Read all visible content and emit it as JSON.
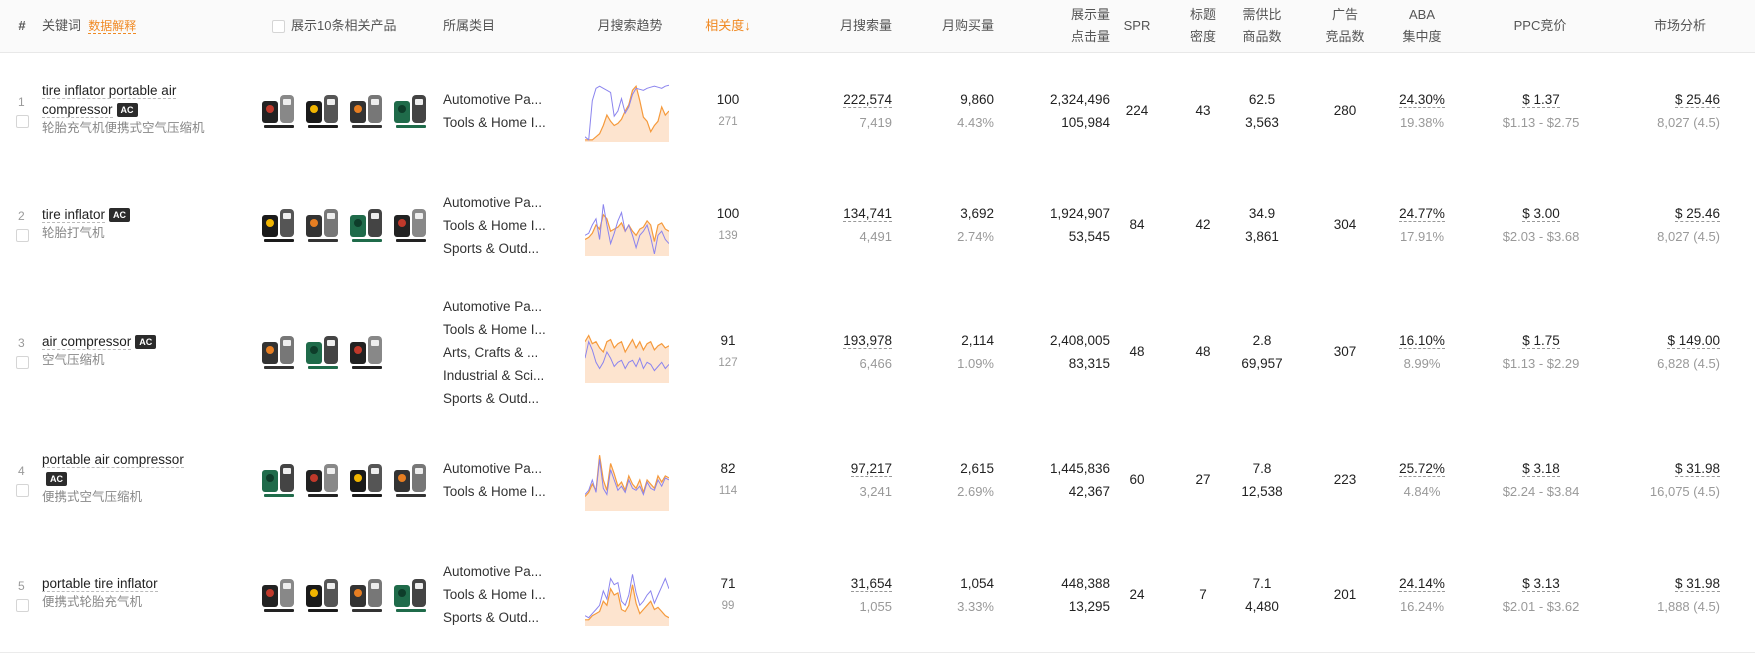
{
  "header": {
    "hash": "#",
    "keyword": "关键词",
    "data_explain": "数据解释",
    "show_products": "展示10条相关产品",
    "category": "所属类目",
    "trend": "月搜索趋势",
    "relevance": "相关度↓",
    "monthly_search": "月搜索量",
    "monthly_buy": "月购买量",
    "impressions": "展示量",
    "clicks": "点击量",
    "spr": "SPR",
    "title_density_1": "标题",
    "title_density_2": "密度",
    "supply_1": "需供比",
    "supply_2": "商品数",
    "ad_1": "广告",
    "ad_2": "竞品数",
    "aba_1": "ABA",
    "aba_2": "集中度",
    "ppc": "PPC竞价",
    "market": "市场分析"
  },
  "colors": {
    "accent": "#f08a24",
    "line_purple": "#8b84ee",
    "line_orange": "#f59a3c",
    "area_fill": "#fde4cf"
  },
  "rows": [
    {
      "index": "1",
      "keyword_line1": "tire inflator portable air",
      "keyword_line2": "compressor",
      "badge": "AC",
      "keyword_cn": "轮胎充气机便携式空气压缩机",
      "categories": [
        "Automotive Pa...",
        "Tools & Home I..."
      ],
      "relevance": "100",
      "relevance_sub": "271",
      "monthly_search": "222,574",
      "monthly_search_sub": "7,419",
      "monthly_buy": "9,860",
      "monthly_buy_sub": "4.43%",
      "impressions": "2,324,496",
      "clicks": "105,984",
      "spr": "224",
      "title_density": "43",
      "supply_ratio": "62.5",
      "product_count": "3,563",
      "ad_count": "280",
      "aba": "24.30%",
      "aba_sub": "19.38%",
      "ppc": "$ 1.37",
      "ppc_range": "$1.13 - $2.75",
      "market": "$ 25.46",
      "market_sub": "8,027 (4.5)",
      "thumb_icons": [
        "tire-inflator-kit-icon",
        "portable-inflator-icon",
        "tire-inflator-icon",
        "green-air-compressor-icon"
      ],
      "trend_purple": [
        55,
        58,
        20,
        8,
        6,
        8,
        10,
        12,
        35,
        30,
        18,
        32,
        26,
        14,
        8,
        9,
        10,
        8,
        7,
        6,
        7,
        8,
        6,
        5
      ],
      "trend_orange": [
        58,
        58,
        58,
        55,
        52,
        44,
        34,
        40,
        44,
        42,
        38,
        30,
        24,
        10,
        6,
        20,
        36,
        40,
        50,
        44,
        40,
        26,
        34,
        30
      ]
    },
    {
      "index": "2",
      "keyword_line1": "tire inflator",
      "keyword_line2": "",
      "badge": "AC",
      "keyword_cn": "轮胎打气机",
      "categories": [
        "Automotive Pa...",
        "Tools & Home I...",
        "Sports & Outd..."
      ],
      "relevance": "100",
      "relevance_sub": "139",
      "monthly_search": "134,741",
      "monthly_search_sub": "4,491",
      "monthly_buy": "3,692",
      "monthly_buy_sub": "2.74%",
      "impressions": "1,924,907",
      "clicks": "53,545",
      "spr": "84",
      "title_density": "42",
      "supply_ratio": "34.9",
      "product_count": "3,861",
      "ad_count": "304",
      "aba": "24.77%",
      "aba_sub": "17.91%",
      "ppc": "$ 3.00",
      "ppc_range": "$2.03 - $3.68",
      "market": "$ 25.46",
      "market_sub": "8,027 (4.5)",
      "thumb_icons": [
        "inflator-black-icon",
        "inflator-set-icon",
        "inflator-gauge-icon",
        "digital-inflator-icon"
      ],
      "trend_purple": [
        40,
        38,
        30,
        24,
        44,
        10,
        30,
        48,
        38,
        26,
        18,
        36,
        30,
        40,
        52,
        40,
        36,
        30,
        42,
        58,
        40,
        36,
        44,
        48
      ],
      "trend_orange": [
        44,
        42,
        38,
        30,
        34,
        20,
        24,
        36,
        34,
        32,
        28,
        36,
        30,
        36,
        40,
        34,
        32,
        26,
        30,
        46,
        30,
        28,
        34,
        36
      ]
    },
    {
      "index": "3",
      "keyword_line1": "air compressor",
      "keyword_line2": "",
      "badge": "AC",
      "keyword_cn": "空气压缩机",
      "categories": [
        "Automotive Pa...",
        "Tools & Home I...",
        "Arts, Crafts & ...",
        "Industrial & Sci...",
        "Sports & Outd..."
      ],
      "relevance": "91",
      "relevance_sub": "127",
      "monthly_search": "193,978",
      "monthly_search_sub": "6,466",
      "monthly_buy": "2,114",
      "monthly_buy_sub": "1.09%",
      "impressions": "2,408,005",
      "clicks": "83,315",
      "spr": "48",
      "title_density": "48",
      "supply_ratio": "2.8",
      "product_count": "69,957",
      "ad_count": "307",
      "aba": "16.10%",
      "aba_sub": "8.99%",
      "ppc": "$ 1.75",
      "ppc_range": "$1.13 - $2.29",
      "market": "$ 149.00",
      "market_sub": "6,828 (4.5)",
      "thumb_icons": [
        "yellow-compressor-icon",
        "pancake-compressor-icon",
        "portable-compressor-icon"
      ],
      "trend_purple": [
        36,
        20,
        28,
        40,
        46,
        40,
        30,
        36,
        44,
        40,
        38,
        46,
        40,
        38,
        44,
        36,
        46,
        40,
        42,
        48,
        44,
        40,
        46,
        42
      ],
      "trend_orange": [
        20,
        14,
        22,
        20,
        26,
        30,
        20,
        18,
        26,
        22,
        20,
        30,
        24,
        18,
        26,
        20,
        28,
        22,
        20,
        28,
        24,
        22,
        26,
        24
      ]
    },
    {
      "index": "4",
      "keyword_line1": "portable air compressor",
      "keyword_line2": "",
      "badge": "AC",
      "keyword_cn": "便携式空气压缩机",
      "categories": [
        "Automotive Pa...",
        "Tools & Home I..."
      ],
      "relevance": "82",
      "relevance_sub": "114",
      "monthly_search": "97,217",
      "monthly_search_sub": "3,241",
      "monthly_buy": "2,615",
      "monthly_buy_sub": "2.69%",
      "impressions": "1,445,836",
      "clicks": "42,367",
      "spr": "60",
      "title_density": "27",
      "supply_ratio": "7.8",
      "product_count": "12,538",
      "ad_count": "223",
      "aba": "25.72%",
      "aba_sub": "4.84%",
      "ppc": "$ 3.18",
      "ppc_range": "$2.24 - $3.84",
      "market": "$ 31.98",
      "market_sub": "16,075 (4.5)",
      "thumb_icons": [
        "tank-compressor-icon",
        "red-compressor-icon",
        "impact-tool-icon",
        "compressor-kit-icon"
      ],
      "trend_purple": [
        44,
        40,
        30,
        42,
        10,
        38,
        44,
        20,
        30,
        40,
        36,
        42,
        30,
        38,
        40,
        36,
        44,
        32,
        38,
        40,
        30,
        36,
        28,
        30
      ],
      "trend_orange": [
        46,
        42,
        34,
        40,
        6,
        30,
        40,
        14,
        24,
        36,
        32,
        40,
        26,
        34,
        38,
        30,
        42,
        30,
        34,
        38,
        26,
        32,
        26,
        28
      ]
    },
    {
      "index": "5",
      "keyword_line1": "portable tire inflator",
      "keyword_line2": "",
      "badge": "",
      "keyword_cn": "便携式轮胎充气机",
      "categories": [
        "Automotive Pa...",
        "Tools & Home I...",
        "Sports & Outd..."
      ],
      "relevance": "71",
      "relevance_sub": "99",
      "monthly_search": "31,654",
      "monthly_search_sub": "1,055",
      "monthly_buy": "1,054",
      "monthly_buy_sub": "3.33%",
      "impressions": "448,388",
      "clicks": "13,295",
      "spr": "24",
      "title_density": "7",
      "supply_ratio": "7.1",
      "product_count": "4,480",
      "ad_count": "201",
      "aba": "24.14%",
      "aba_sub": "16.24%",
      "ppc": "$ 3.13",
      "ppc_range": "$2.01 - $3.62",
      "market": "$ 31.98",
      "market_sub": "1,888 (4.5)",
      "thumb_icons": [
        "dewalt-inflator-icon",
        "inflator-combo-icon",
        "jump-starter-icon",
        "inflator-accessories-icon"
      ],
      "trend_purple": [
        50,
        52,
        48,
        44,
        40,
        26,
        34,
        14,
        20,
        18,
        36,
        40,
        30,
        10,
        28,
        40,
        36,
        30,
        26,
        38,
        30,
        22,
        14,
        24
      ],
      "trend_orange": [
        54,
        54,
        50,
        48,
        46,
        36,
        40,
        24,
        30,
        28,
        44,
        46,
        40,
        20,
        38,
        48,
        44,
        40,
        36,
        44,
        42,
        46,
        50,
        52
      ]
    }
  ]
}
